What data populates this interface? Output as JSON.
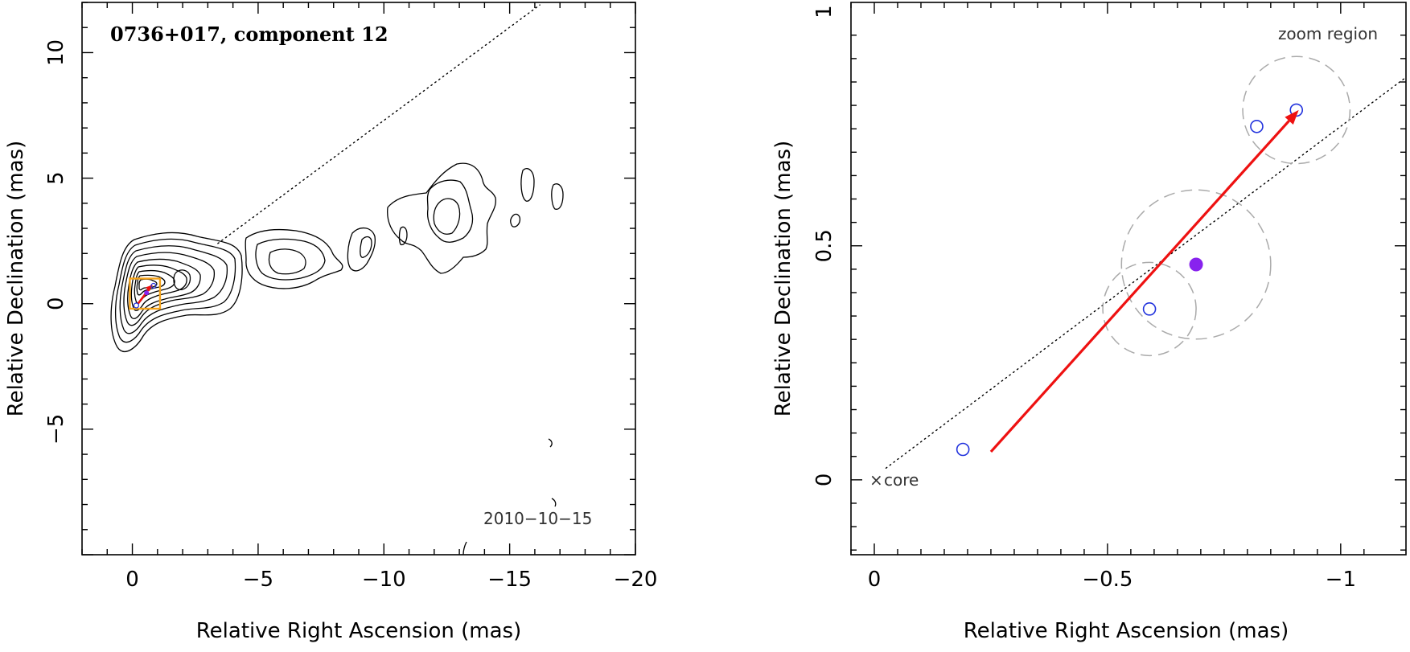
{
  "chart_data": [
    {
      "type": "contour",
      "title": "0736+017, component 12",
      "date_label": "2010−10−15",
      "xlabel": "Relative Right Ascension (mas)",
      "ylabel": "Relative Declination (mas)",
      "xlim": [
        2,
        -20
      ],
      "ylim": [
        -10,
        12
      ],
      "x_ticks": [
        0,
        -5,
        -10,
        -15,
        -20
      ],
      "x_tick_labels": [
        "0",
        "−5",
        "−10",
        "−15",
        "−20"
      ],
      "y_ticks": [
        -5,
        0,
        5,
        10
      ],
      "y_tick_labels": [
        "−5",
        "0",
        "5",
        "10"
      ],
      "jet_axis": {
        "from": [
          -3.4,
          2.4
        ],
        "to": [
          -16.2,
          11.9
        ]
      },
      "zoom_box": {
        "x": [
          0.1,
          -1.1
        ],
        "y": [
          -0.2,
          1.0
        ]
      },
      "colors": {
        "zoom_box": "#f5a31a",
        "arrow": "#ee1111",
        "contour": "#000000"
      }
    },
    {
      "type": "scatter",
      "xlabel": "Relative Right Ascension (mas)",
      "ylabel": "Relative Declination (mas)",
      "xlim": [
        0.05,
        -1.14
      ],
      "ylim": [
        -0.16,
        1.02
      ],
      "x_ticks": [
        0,
        -0.5,
        -1
      ],
      "x_tick_labels": [
        "0",
        "−0.5",
        "−1"
      ],
      "y_ticks": [
        0,
        0.5,
        1
      ],
      "y_tick_labels": [
        "0",
        "0.5",
        "1"
      ],
      "annotations": {
        "zoom": "zoom region",
        "core": "core"
      },
      "core_marker": {
        "x": 0,
        "y": 0
      },
      "open_components": [
        {
          "x": -0.19,
          "y": 0.065
        },
        {
          "x": -0.59,
          "y": 0.365
        },
        {
          "x": -0.82,
          "y": 0.755
        },
        {
          "x": -0.905,
          "y": 0.79
        }
      ],
      "filled_component": {
        "x": -0.69,
        "y": 0.46
      },
      "uncertainty_circles": [
        {
          "x": -0.59,
          "y": 0.365,
          "r": 0.1
        },
        {
          "x": -0.69,
          "y": 0.46,
          "r": 0.16
        },
        {
          "x": -0.905,
          "y": 0.79,
          "r": 0.115
        }
      ],
      "arrow": {
        "from": [
          -0.25,
          0.06
        ],
        "to": [
          -0.91,
          0.79
        ]
      },
      "jet_axis": {
        "from": [
          -0.025,
          0.025
        ],
        "to": [
          -1.14,
          0.86
        ]
      },
      "colors": {
        "open_marker": "#2233dd",
        "filled_marker": "#8822ee",
        "arrow": "#ee1111",
        "circle": "#aaaaaa"
      }
    }
  ]
}
